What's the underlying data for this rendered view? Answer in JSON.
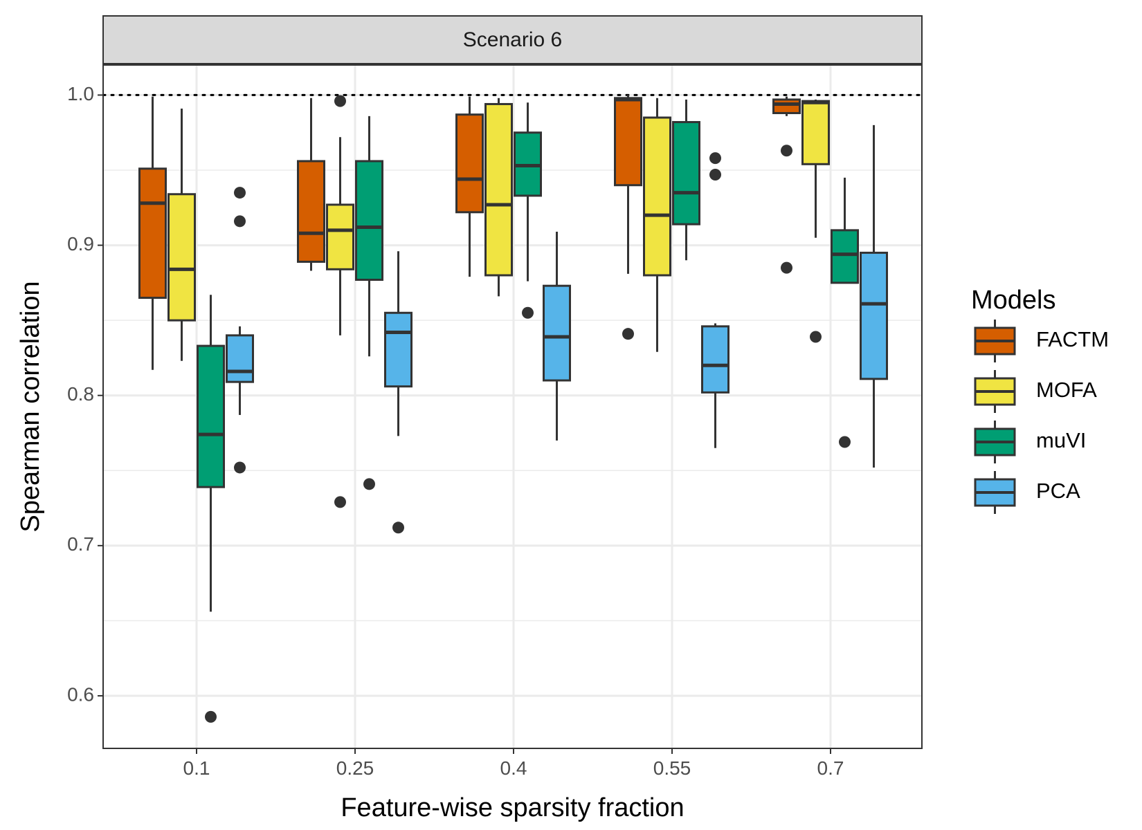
{
  "chart_data": {
    "type": "boxplot",
    "facet_label": "Scenario 6",
    "xlabel": "Feature-wise sparsity fraction",
    "ylabel": "Spearman correlation",
    "categories": [
      "0.1",
      "0.25",
      "0.4",
      "0.55",
      "0.7"
    ],
    "ylim": [
      0.565,
      1.02
    ],
    "yticks": [
      0.6,
      0.7,
      0.8,
      0.9,
      1.0
    ],
    "ytick_labels": [
      "0.6",
      "0.7",
      "0.8",
      "0.9",
      "1.0"
    ],
    "reference_line": 1.0,
    "grid": true,
    "legend": {
      "title": "Models",
      "position": "right"
    },
    "series": [
      {
        "name": "FACTM",
        "color": "#D55E00",
        "boxes": [
          {
            "lower_whisker": 0.817,
            "q1": 0.865,
            "median": 0.928,
            "q3": 0.951,
            "upper_whisker": 0.999,
            "outliers": []
          },
          {
            "lower_whisker": 0.883,
            "q1": 0.889,
            "median": 0.908,
            "q3": 0.956,
            "upper_whisker": 0.998,
            "outliers": []
          },
          {
            "lower_whisker": 0.879,
            "q1": 0.922,
            "median": 0.944,
            "q3": 0.987,
            "upper_whisker": 0.999,
            "outliers": []
          },
          {
            "lower_whisker": 0.881,
            "q1": 0.94,
            "median": 0.997,
            "q3": 0.998,
            "upper_whisker": 1.0,
            "outliers": [
              0.841
            ]
          },
          {
            "lower_whisker": 0.986,
            "q1": 0.988,
            "median": 0.994,
            "q3": 0.997,
            "upper_whisker": 0.999,
            "outliers": [
              0.963,
              0.885
            ]
          }
        ]
      },
      {
        "name": "MOFA",
        "color": "#F0E442",
        "boxes": [
          {
            "lower_whisker": 0.823,
            "q1": 0.85,
            "median": 0.884,
            "q3": 0.934,
            "upper_whisker": 0.991,
            "outliers": []
          },
          {
            "lower_whisker": 0.84,
            "q1": 0.884,
            "median": 0.91,
            "q3": 0.927,
            "upper_whisker": 0.972,
            "outliers": [
              0.996,
              0.729
            ]
          },
          {
            "lower_whisker": 0.866,
            "q1": 0.88,
            "median": 0.927,
            "q3": 0.994,
            "upper_whisker": 0.998,
            "outliers": []
          },
          {
            "lower_whisker": 0.829,
            "q1": 0.88,
            "median": 0.92,
            "q3": 0.985,
            "upper_whisker": 0.998,
            "outliers": []
          },
          {
            "lower_whisker": 0.905,
            "q1": 0.954,
            "median": 0.995,
            "q3": 0.996,
            "upper_whisker": 0.997,
            "outliers": [
              0.839
            ]
          }
        ]
      },
      {
        "name": "muVI",
        "color": "#009E73",
        "boxes": [
          {
            "lower_whisker": 0.656,
            "q1": 0.739,
            "median": 0.774,
            "q3": 0.833,
            "upper_whisker": 0.867,
            "outliers": [
              0.586
            ]
          },
          {
            "lower_whisker": 0.826,
            "q1": 0.877,
            "median": 0.912,
            "q3": 0.956,
            "upper_whisker": 0.986,
            "outliers": [
              0.741
            ]
          },
          {
            "lower_whisker": 0.876,
            "q1": 0.933,
            "median": 0.953,
            "q3": 0.975,
            "upper_whisker": 0.995,
            "outliers": [
              0.855
            ]
          },
          {
            "lower_whisker": 0.89,
            "q1": 0.914,
            "median": 0.935,
            "q3": 0.982,
            "upper_whisker": 0.997,
            "outliers": []
          },
          {
            "lower_whisker": 0.875,
            "q1": 0.875,
            "median": 0.894,
            "q3": 0.91,
            "upper_whisker": 0.945,
            "outliers": [
              0.769
            ]
          }
        ]
      },
      {
        "name": "PCA",
        "color": "#56B4E9",
        "boxes": [
          {
            "lower_whisker": 0.787,
            "q1": 0.809,
            "median": 0.816,
            "q3": 0.84,
            "upper_whisker": 0.846,
            "outliers": [
              0.935,
              0.916,
              0.752
            ]
          },
          {
            "lower_whisker": 0.773,
            "q1": 0.806,
            "median": 0.842,
            "q3": 0.855,
            "upper_whisker": 0.896,
            "outliers": [
              0.712
            ]
          },
          {
            "lower_whisker": 0.77,
            "q1": 0.81,
            "median": 0.839,
            "q3": 0.873,
            "upper_whisker": 0.909,
            "outliers": []
          },
          {
            "lower_whisker": 0.765,
            "q1": 0.802,
            "median": 0.82,
            "q3": 0.846,
            "upper_whisker": 0.848,
            "outliers": [
              0.958,
              0.947
            ]
          },
          {
            "lower_whisker": 0.752,
            "q1": 0.811,
            "median": 0.861,
            "q3": 0.895,
            "upper_whisker": 0.98,
            "outliers": []
          }
        ]
      }
    ]
  }
}
